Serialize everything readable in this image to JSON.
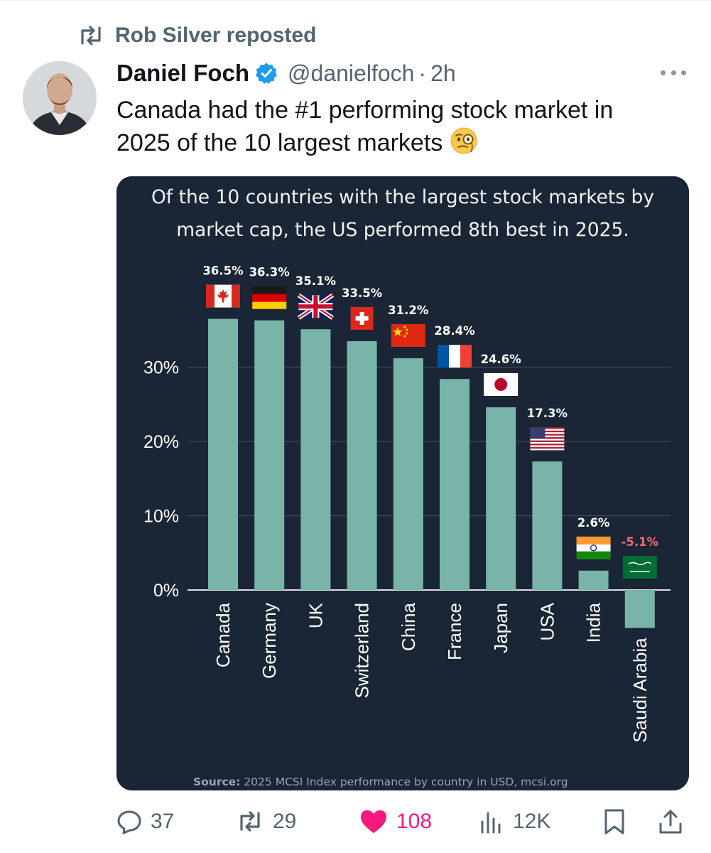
{
  "repost": {
    "label": "Rob Silver reposted"
  },
  "author": {
    "name": "Daniel Foch",
    "handle": "@danielfoch",
    "time": "2h"
  },
  "tweet": {
    "lines": [
      "Canada had the #1 performing stock market in",
      "2025 of the 10 largest markets"
    ],
    "emoji": "face-with-monocle"
  },
  "colors": {
    "accent": "#1d9bf0",
    "like": "#f91880",
    "muted": "#536471",
    "chart_bg": "#1a2636",
    "bar": "#78b5a8",
    "negative_label": "#f26b6b"
  },
  "chart_data": {
    "type": "bar",
    "title_lines": [
      "Of the 10 countries with the largest stock markets by",
      "market cap, the US performed 8th best in 2025."
    ],
    "categories": [
      "Canada",
      "Germany",
      "UK",
      "Switzerland",
      "China",
      "France",
      "Japan",
      "USA",
      "India",
      "Saudi Arabia"
    ],
    "values": [
      36.5,
      36.3,
      35.1,
      33.5,
      31.2,
      28.4,
      24.6,
      17.3,
      2.6,
      -5.1
    ],
    "value_labels": [
      "36.5%",
      "36.3%",
      "35.1%",
      "33.5%",
      "31.2%",
      "28.4%",
      "24.6%",
      "17.3%",
      "2.6%",
      "-5.1%"
    ],
    "flags": [
      "canada-flag",
      "germany-flag",
      "uk-flag",
      "switzerland-flag",
      "china-flag",
      "france-flag",
      "japan-flag",
      "usa-flag",
      "india-flag",
      "saudi-arabia-flag"
    ],
    "y_ticks": [
      "0%",
      "10%",
      "20%",
      "30%"
    ],
    "y_tick_values": [
      0,
      10,
      20,
      30
    ],
    "ylim": [
      -5.1,
      36.5
    ],
    "grid": true,
    "source_bold": "Source:",
    "source_text": " 2025 MCSI Index performance by country in USD, mcsi.org"
  },
  "actions": {
    "replies": "37",
    "reposts": "29",
    "likes": "108",
    "views": "12K"
  }
}
